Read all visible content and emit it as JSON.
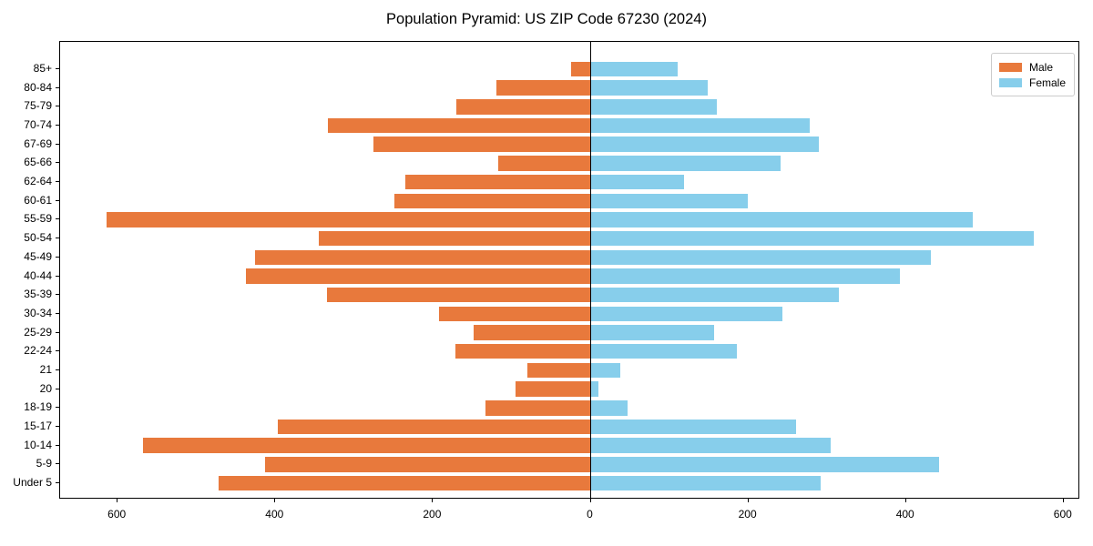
{
  "title": "Population Pyramid: US ZIP Code 67230 (2024)",
  "legend": {
    "male_label": "Male",
    "female_label": "Female",
    "position": "upper right"
  },
  "colors": {
    "male": "#E8793C",
    "female": "#87CEEB",
    "axis": "#000000",
    "zero_line": "#000000",
    "text": "#000000",
    "legend_border": "#CCCCCC",
    "background": "#FFFFFF"
  },
  "chart_data": {
    "type": "bar",
    "orientation": "horizontal-pyramid",
    "title": "Population Pyramid: US ZIP Code 67230 (2024)",
    "xlabel": "",
    "ylabel": "",
    "grid": false,
    "legend_position": "upper right",
    "categories": [
      "85+",
      "80-84",
      "75-79",
      "70-74",
      "67-69",
      "65-66",
      "62-64",
      "60-61",
      "55-59",
      "50-54",
      "45-49",
      "40-44",
      "35-39",
      "30-34",
      "25-29",
      "22-24",
      "21",
      "20",
      "18-19",
      "15-17",
      "10-14",
      "5-9",
      "Under 5"
    ],
    "series": [
      {
        "name": "Male",
        "side": "left",
        "color": "#E8793C",
        "values": [
          25,
          120,
          170,
          333,
          275,
          117,
          235,
          249,
          614,
          345,
          426,
          437,
          334,
          192,
          148,
          172,
          80,
          95,
          134,
          397,
          568,
          413,
          472
        ]
      },
      {
        "name": "Female",
        "side": "right",
        "color": "#87CEEB",
        "values": [
          110,
          149,
          160,
          278,
          289,
          241,
          118,
          199,
          485,
          562,
          432,
          392,
          315,
          243,
          156,
          185,
          37,
          10,
          47,
          260,
          305,
          442,
          292
        ]
      }
    ],
    "x_tick_values": [
      -600,
      -400,
      -200,
      0,
      200,
      400,
      600
    ],
    "x_tick_labels": [
      "600",
      "400",
      "200",
      "0",
      "200",
      "400",
      "600"
    ],
    "xlim": [
      -673,
      621
    ]
  }
}
